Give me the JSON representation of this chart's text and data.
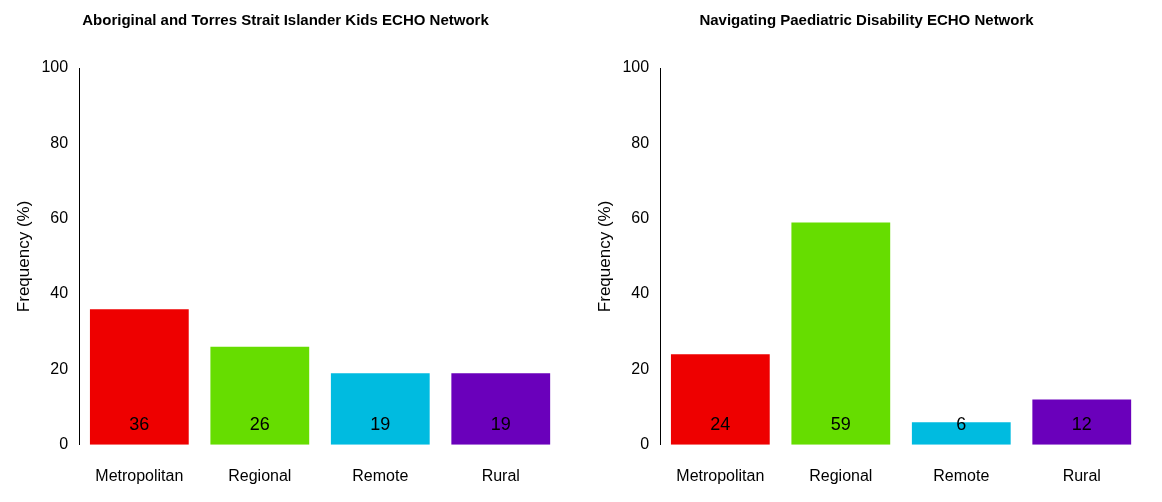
{
  "chart_data": [
    {
      "type": "bar",
      "title": "Aboriginal and Torres Strait Islander Kids ECHO Network",
      "ylabel": "Frequency (%)",
      "categories": [
        "Metropolitan",
        "Regional",
        "Remote",
        "Rural"
      ],
      "values": [
        36,
        26,
        19,
        19
      ],
      "colors": [
        "#ee0000",
        "#66dd00",
        "#00bbe0",
        "#6a00bb"
      ],
      "ylim": [
        0,
        100
      ],
      "yticks": [
        0,
        20,
        40,
        60,
        80,
        100
      ],
      "data_labels": true,
      "grid": false,
      "legend": false
    },
    {
      "type": "bar",
      "title": "Navigating Paediatric Disability ECHO Network",
      "ylabel": "Frequency (%)",
      "categories": [
        "Metropolitan",
        "Regional",
        "Remote",
        "Rural"
      ],
      "values": [
        24,
        59,
        6,
        12
      ],
      "colors": [
        "#ee0000",
        "#66dd00",
        "#00bbe0",
        "#6a00bb"
      ],
      "ylim": [
        0,
        100
      ],
      "yticks": [
        0,
        20,
        40,
        60,
        80,
        100
      ],
      "data_labels": true,
      "grid": false,
      "legend": false
    }
  ]
}
